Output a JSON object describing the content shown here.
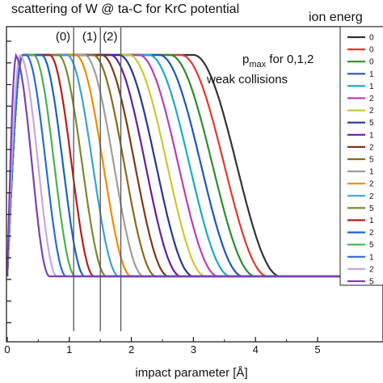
{
  "chart_data": {
    "type": "line",
    "title": "scattering of W @ ta-C for KrC potential",
    "xlabel": "impact parameter [Å]",
    "ylabel": "",
    "xlim": [
      0,
      5.8
    ],
    "ylim": [
      0,
      1.05
    ],
    "x_ticks": [
      "0",
      "1",
      "2",
      "3",
      "4",
      "5"
    ],
    "grid": false,
    "legend": {
      "title": "ion energ",
      "placement": "right"
    },
    "annotation": {
      "text_main": "p",
      "text_sub": "max",
      "text_rest": " for 0,1,2",
      "line2": "weak collisions"
    },
    "markers": [
      {
        "label": "(0)",
        "x": 1.07
      },
      {
        "label": "(1)",
        "x": 1.5
      },
      {
        "label": "(2)",
        "x": 1.83
      }
    ],
    "series": [
      {
        "name": "0",
        "color": "#333333",
        "plateau_end": 3.0,
        "fall_end": 4.4
      },
      {
        "name": "0",
        "color": "#e0392b",
        "plateau_end": 2.8,
        "fall_end": 4.2
      },
      {
        "name": "0",
        "color": "#2e8b2e",
        "plateau_end": 2.62,
        "fall_end": 4.0
      },
      {
        "name": "1",
        "color": "#1e56c0",
        "plateau_end": 2.45,
        "fall_end": 3.8
      },
      {
        "name": "1",
        "color": "#1aaac8",
        "plateau_end": 2.28,
        "fall_end": 3.6
      },
      {
        "name": "2",
        "color": "#b93fb3",
        "plateau_end": 2.12,
        "fall_end": 3.4
      },
      {
        "name": "2",
        "color": "#c9c930",
        "plateau_end": 1.96,
        "fall_end": 3.2
      },
      {
        "name": "5",
        "color": "#283593",
        "plateau_end": 1.8,
        "fall_end": 3.0
      },
      {
        "name": "1",
        "color": "#6a1b9a",
        "plateau_end": 1.66,
        "fall_end": 2.8
      },
      {
        "name": "2",
        "color": "#7a3a1a",
        "plateau_end": 1.52,
        "fall_end": 2.6
      },
      {
        "name": "5",
        "color": "#8b6a1e",
        "plateau_end": 1.38,
        "fall_end": 2.4
      },
      {
        "name": "1",
        "color": "#9e9e9e",
        "plateau_end": 1.24,
        "fall_end": 2.2
      },
      {
        "name": "2",
        "color": "#f08c00",
        "plateau_end": 1.1,
        "fall_end": 2.0
      },
      {
        "name": "2",
        "color": "#3aa0d8",
        "plateau_end": 0.96,
        "fall_end": 1.8
      },
      {
        "name": "5",
        "color": "#7a8a2e",
        "plateau_end": 0.82,
        "fall_end": 1.6
      },
      {
        "name": "1",
        "color": "#b71c1c",
        "plateau_end": 0.68,
        "fall_end": 1.4
      },
      {
        "name": "2",
        "color": "#1565c0",
        "plateau_end": 0.55,
        "fall_end": 1.25
      },
      {
        "name": "5",
        "color": "#4caf50",
        "plateau_end": 0.42,
        "fall_end": 1.1
      },
      {
        "name": "1",
        "color": "#2a6ad8",
        "plateau_end": 0.3,
        "fall_end": 0.95
      },
      {
        "name": "2",
        "color": "#c8a8e0",
        "plateau_end": 0.2,
        "fall_end": 0.8
      },
      {
        "name": "5",
        "color": "#7e3fb8",
        "plateau_end": 0.12,
        "fall_end": 0.68
      }
    ]
  }
}
